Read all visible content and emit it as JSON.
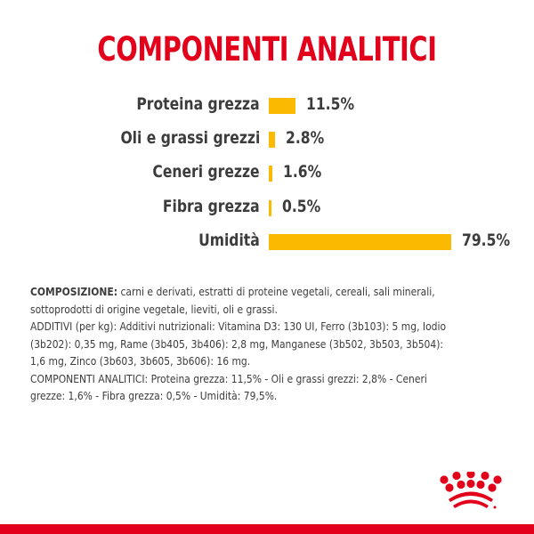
{
  "header": {
    "title": "COMPONENTI ANALITICI"
  },
  "chart_data": {
    "type": "bar",
    "orientation": "horizontal",
    "title": "COMPONENTI ANALITICI",
    "categories": [
      "Proteina grezza",
      "Oli e grassi grezzi",
      "Ceneri grezze",
      "Fibra grezza",
      "Umidità"
    ],
    "values": [
      11.5,
      2.8,
      1.6,
      0.5,
      79.5
    ],
    "value_labels": [
      "11.5%",
      "2.8%",
      "1.6%",
      "0.5%",
      "79.5%"
    ],
    "unit": "%",
    "xlabel": "",
    "ylabel": "",
    "grid": false,
    "bar_color": "#fbb900"
  },
  "rows": [
    {
      "label": "Proteina grezza",
      "value": "11.5%"
    },
    {
      "label": "Oli e grassi grezzi",
      "value": "2.8%"
    },
    {
      "label": "Ceneri grezze",
      "value": "1.6%"
    },
    {
      "label": "Fibra grezza",
      "value": "0.5%"
    },
    {
      "label": "Umidità",
      "value": "79.5%"
    }
  ],
  "composition": {
    "heading": "COMPOSIZIONE:",
    "text": " carni e derivati, estratti di proteine vegetali, cereali, sali minerali, sottoprodotti di origine vegetale, lieviti, oli e grassi.",
    "additives": "ADDITIVI (per kg): Additivi nutrizionali: Vitamina D3: 130 UI, Ferro (3b103): 5 mg, Iodio (3b202): 0,35 mg, Rame (3b405, 3b406): 2,8 mg, Manganese (3b502, 3b503, 3b504): 1,6 mg, Zinco (3b603, 3b605, 3b606): 16 mg.",
    "analytical": "COMPONENTI ANALITICI: Proteina grezza: 11,5% - Oli e grassi grezzi: 2,8% - Ceneri grezze: 1,6% - Fibra grezza: 0,5% - Umidità: 79,5%."
  },
  "colors": {
    "brand_red": "#e2001a",
    "bar_yellow": "#fbb900",
    "text_gray": "#3c3c3c"
  },
  "logo": {
    "icon": "royal-canin-crown-icon"
  }
}
